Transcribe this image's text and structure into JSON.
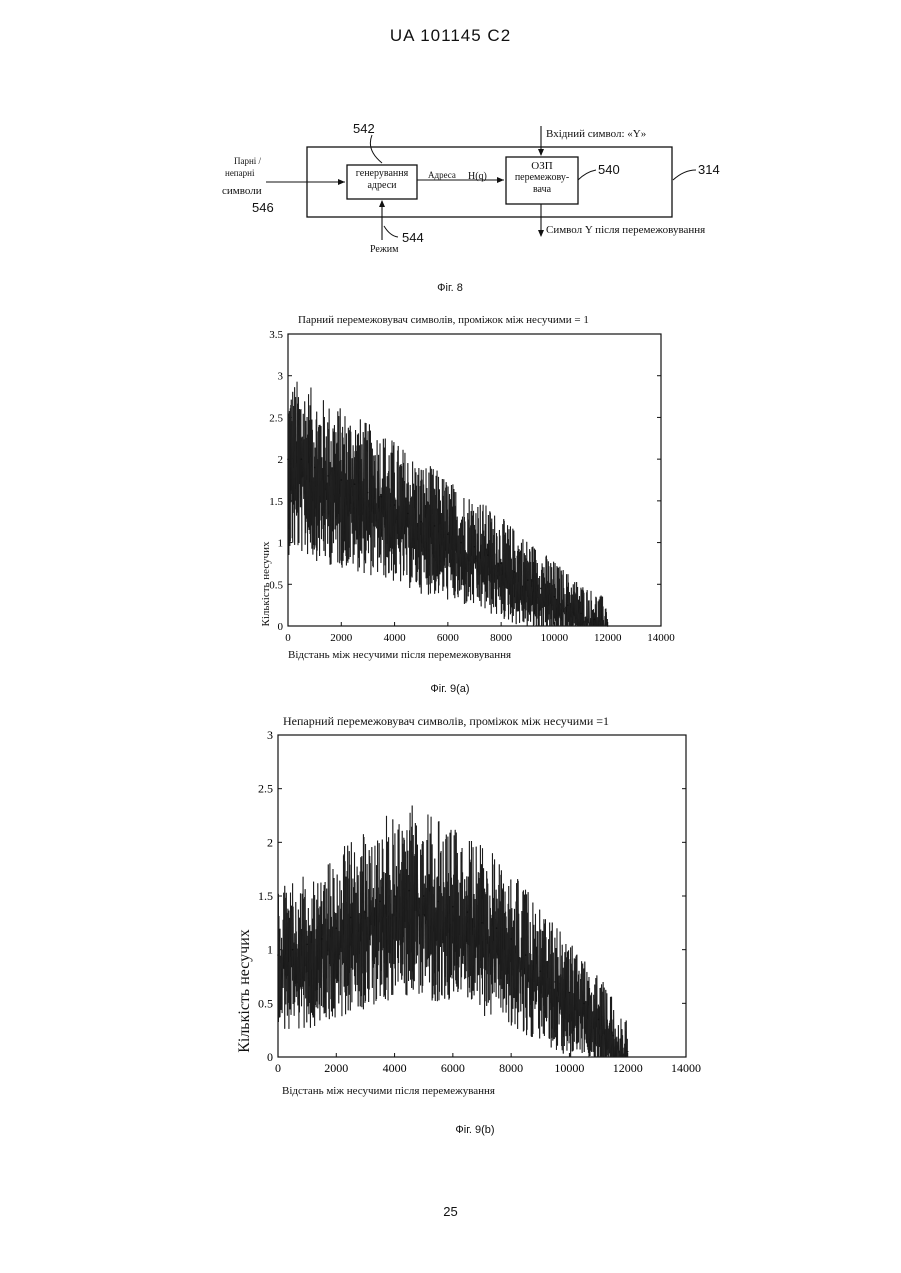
{
  "header": {
    "text": "UA   101145   C2"
  },
  "page_number": "25",
  "figure8": {
    "caption": "Фіг. 8",
    "input_label_line1": "Парні /",
    "input_label_line2": "непарні",
    "input_label_line3": "символи",
    "ref_546": "546",
    "ref_542": "542",
    "ref_544": "544",
    "ref_540": "540",
    "ref_314": "314",
    "addr_gen_line1": "генерування",
    "addr_gen_line2": "адреси",
    "mode_label": "Режим",
    "address_label": "Адреса",
    "hq_label": "H(q)",
    "ram_line1": "ОЗП",
    "ram_line2": "перемежову-",
    "ram_line3": "вача",
    "input_symbol_label": "Вхідний символ: «Y»",
    "output_symbol_label": "Символ Y після перемежовування"
  },
  "chart_data": [
    {
      "type": "bar",
      "title": "Парний перемежовувач символів, проміжок між несучими = 1",
      "xlabel": "Відстань між несучими після перемежовування",
      "ylabel": "Кількість несучих",
      "caption": "Фіг. 9(а)",
      "xlim": [
        0,
        14000
      ],
      "ylim": [
        0,
        3.5
      ],
      "xticks": [
        "0",
        "2000",
        "4000",
        "6000",
        "8000",
        "10000",
        "12000",
        "14000"
      ],
      "yticks": [
        "0",
        "0.5",
        "1",
        "1.5",
        "2",
        "2.5",
        "3",
        "3.5"
      ],
      "x": [
        0,
        500,
        1000,
        1500,
        2000,
        2500,
        3000,
        3500,
        4000,
        4500,
        5000,
        5500,
        6000,
        6500,
        7000,
        7500,
        8000,
        8500,
        9000,
        9500,
        10000,
        10500,
        11000,
        11500,
        12000
      ],
      "values": [
        2.0,
        2.0,
        1.9,
        1.8,
        1.75,
        1.7,
        1.6,
        1.55,
        1.45,
        1.35,
        1.25,
        1.2,
        1.1,
        1.0,
        0.95,
        0.85,
        0.75,
        0.65,
        0.55,
        0.45,
        0.35,
        0.25,
        0.15,
        0.08,
        0.0
      ],
      "grid": false
    },
    {
      "type": "bar",
      "title": "Непарний перемежовувач символів, проміжок між несучими =1",
      "xlabel": "Відстань між несучими після перемежування",
      "ylabel": "Кількість несучих",
      "caption": "Фіг. 9(b)",
      "xlim": [
        0,
        14000
      ],
      "ylim": [
        0,
        3
      ],
      "xticks": [
        "0",
        "2000",
        "4000",
        "6000",
        "8000",
        "10000",
        "12000",
        "14000"
      ],
      "yticks": [
        "0",
        "0.5",
        "1",
        "1.5",
        "2",
        "2.5",
        "3"
      ],
      "x": [
        0,
        500,
        1000,
        1500,
        2000,
        2500,
        3000,
        3500,
        4000,
        4500,
        5000,
        5500,
        6000,
        6500,
        7000,
        7500,
        8000,
        8500,
        9000,
        9500,
        10000,
        10500,
        11000,
        11500,
        12000
      ],
      "values": [
        0.95,
        1.0,
        1.05,
        1.1,
        1.2,
        1.3,
        1.35,
        1.45,
        1.5,
        1.55,
        1.5,
        1.45,
        1.4,
        1.35,
        1.25,
        1.2,
        1.1,
        0.95,
        0.8,
        0.7,
        0.6,
        0.5,
        0.35,
        0.2,
        0.05
      ],
      "grid": false
    }
  ]
}
